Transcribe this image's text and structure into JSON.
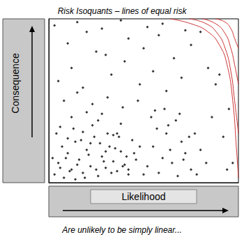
{
  "chart_data": {
    "type": "scatter",
    "title": "Risk Isoquants – lines of equal risk",
    "annotations": [
      "Are unlikely to be simply linear..."
    ],
    "x_label": "Likelihood",
    "y_label": "Consequence",
    "xlim": [
      0,
      100
    ],
    "ylim": [
      0,
      100
    ],
    "grid": false,
    "tick_labels": false,
    "series": [
      {
        "type": "scatter",
        "color": "#000000",
        "marker": "diamond",
        "x": [
          3,
          5,
          8,
          10,
          12,
          14,
          16,
          18,
          20,
          22,
          24,
          26,
          28,
          30,
          32,
          34,
          36,
          38,
          40,
          42,
          4,
          7,
          9,
          11,
          13,
          15,
          17,
          19,
          21,
          23,
          25,
          27,
          29,
          31,
          33,
          35,
          37,
          39,
          41,
          44,
          2,
          6,
          10,
          14,
          18,
          22,
          26,
          30,
          34,
          38,
          42,
          46,
          48,
          50,
          6,
          12,
          20,
          28,
          36,
          45,
          52,
          55,
          58,
          60,
          62,
          65,
          68,
          70,
          72,
          75,
          54,
          57,
          61,
          64,
          67,
          71,
          74,
          78,
          80,
          83,
          8,
          15,
          23,
          31,
          39,
          47,
          56,
          63,
          69,
          77,
          86,
          92,
          97,
          94,
          5,
          12,
          18,
          25,
          33,
          40,
          48,
          55,
          62,
          70,
          10,
          20,
          30,
          42,
          50,
          58,
          66,
          75,
          84,
          90,
          3,
          15,
          28,
          38,
          52,
          60,
          72,
          80,
          88,
          95
        ],
        "values": [
          5,
          12,
          3,
          18,
          8,
          25,
          14,
          6,
          20,
          10,
          28,
          4,
          16,
          9,
          22,
          13,
          7,
          19,
          11,
          5,
          30,
          22,
          15,
          7,
          33,
          11,
          26,
          3,
          17,
          35,
          8,
          24,
          13,
          30,
          6,
          21,
          28,
          10,
          16,
          26,
          15,
          34,
          27,
          2,
          31,
          24,
          38,
          19,
          29,
          36,
          8,
          14,
          22,
          5,
          9,
          40,
          43,
          42,
          30,
          18,
          10,
          22,
          6,
          15,
          30,
          12,
          4,
          25,
          18,
          8,
          40,
          33,
          45,
          20,
          38,
          14,
          28,
          5,
          20,
          12,
          50,
          55,
          48,
          52,
          46,
          50,
          44,
          35,
          42,
          30,
          40,
          28,
          12,
          8,
          62,
          70,
          58,
          80,
          66,
          74,
          60,
          68,
          56,
          64,
          85,
          92,
          78,
          88,
          82,
          90,
          76,
          84,
          70,
          66,
          96,
          98,
          94,
          99,
          95,
          97,
          93,
          92,
          60,
          45
        ]
      },
      {
        "type": "line",
        "color": "#cc3333",
        "line_style": "solid",
        "x": [
          64,
          75,
          84,
          90,
          94,
          97,
          99,
          100
        ],
        "values": [
          100,
          97,
          92,
          84,
          72,
          50,
          20,
          3
        ]
      },
      {
        "type": "line",
        "color": "#cc3333",
        "line_style": "solid",
        "x": [
          74,
          83,
          89,
          93,
          96,
          98,
          100
        ],
        "values": [
          100,
          97,
          91,
          82,
          68,
          50,
          30
        ]
      },
      {
        "type": "line",
        "color": "#cc3333",
        "line_style": "solid",
        "x": [
          81,
          88,
          93,
          96,
          98,
          100
        ],
        "values": [
          100,
          97,
          91,
          82,
          72,
          60
        ]
      },
      {
        "type": "line",
        "color": "#cc3333",
        "line_style": "solid",
        "x": [
          88,
          93,
          96,
          98,
          100
        ],
        "values": [
          100,
          98,
          94,
          88,
          82
        ]
      }
    ]
  }
}
